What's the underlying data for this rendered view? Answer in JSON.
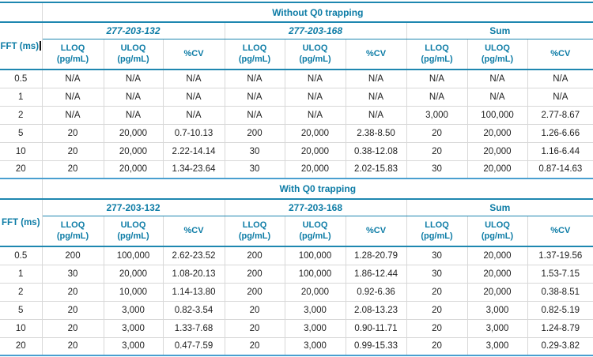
{
  "colors": {
    "accent_text": "#0d7ca6",
    "rule_line": "#1e87b0",
    "bottom_rule_line": "#4a9fd0",
    "grid_line": "#d8d8d8",
    "data_text": "#1f1f1f"
  },
  "column_headers": {
    "fft": "FFT (ms)",
    "subs": [
      {
        "line1": "LLOQ",
        "line2": "(pg/mL)"
      },
      {
        "line1": "ULOQ",
        "line2": "(pg/mL)"
      },
      {
        "line1": "%CV",
        "line2": ""
      }
    ]
  },
  "tables": [
    {
      "section_title": "Without Q0 trapping",
      "has_text_cursor": true,
      "groups": [
        {
          "label": "277-203-132",
          "italic": true
        },
        {
          "label": "277-203-168",
          "italic": true
        },
        {
          "label": "Sum",
          "italic": false
        }
      ],
      "rows": [
        {
          "fft": "0.5",
          "values": [
            "N/A",
            "N/A",
            "N/A",
            "N/A",
            "N/A",
            "N/A",
            "N/A",
            "N/A",
            "N/A"
          ]
        },
        {
          "fft": "1",
          "values": [
            "N/A",
            "N/A",
            "N/A",
            "N/A",
            "N/A",
            "N/A",
            "N/A",
            "N/A",
            "N/A"
          ]
        },
        {
          "fft": "2",
          "values": [
            "N/A",
            "N/A",
            "N/A",
            "N/A",
            "N/A",
            "N/A",
            "3,000",
            "100,000",
            "2.77-8.67"
          ]
        },
        {
          "fft": "5",
          "values": [
            "20",
            "20,000",
            "0.7-10.13",
            "200",
            "20,000",
            "2.38-8.50",
            "20",
            "20,000",
            "1.26-6.66"
          ]
        },
        {
          "fft": "10",
          "values": [
            "20",
            "20,000",
            "2.22-14.14",
            "30",
            "20,000",
            "0.38-12.08",
            "20",
            "20,000",
            "1.16-6.44"
          ]
        },
        {
          "fft": "20",
          "values": [
            "20",
            "20,000",
            "1.34-23.64",
            "30",
            "20,000",
            "2.02-15.83",
            "30",
            "20,000",
            "0.87-14.63"
          ]
        }
      ]
    },
    {
      "section_title": "With Q0 trapping",
      "has_text_cursor": false,
      "groups": [
        {
          "label": "277-203-132",
          "italic": false
        },
        {
          "label": "277-203-168",
          "italic": false
        },
        {
          "label": "Sum",
          "italic": false
        }
      ],
      "rows": [
        {
          "fft": "0.5",
          "values": [
            "200",
            "100,000",
            "2.62-23.52",
            "200",
            "100,000",
            "1.28-20.79",
            "30",
            "20,000",
            "1.37-19.56"
          ]
        },
        {
          "fft": "1",
          "values": [
            "30",
            "20,000",
            "1.08-20.13",
            "200",
            "100,000",
            "1.86-12.44",
            "30",
            "20,000",
            "1.53-7.15"
          ]
        },
        {
          "fft": "2",
          "values": [
            "20",
            "10,000",
            "1.14-13.80",
            "200",
            "20,000",
            "0.92-6.36",
            "20",
            "20,000",
            "0.38-8.51"
          ]
        },
        {
          "fft": "5",
          "values": [
            "20",
            "3,000",
            "0.82-3.54",
            "20",
            "3,000",
            "2.08-13.23",
            "20",
            "3,000",
            "0.82-5.19"
          ]
        },
        {
          "fft": "10",
          "values": [
            "20",
            "3,000",
            "1.33-7.68",
            "20",
            "3,000",
            "0.90-11.71",
            "20",
            "3,000",
            "1.24-8.79"
          ]
        },
        {
          "fft": "20",
          "values": [
            "20",
            "3,000",
            "0.47-7.59",
            "20",
            "3,000",
            "0.99-15.33",
            "20",
            "3,000",
            "0.29-3.82"
          ]
        }
      ]
    }
  ]
}
